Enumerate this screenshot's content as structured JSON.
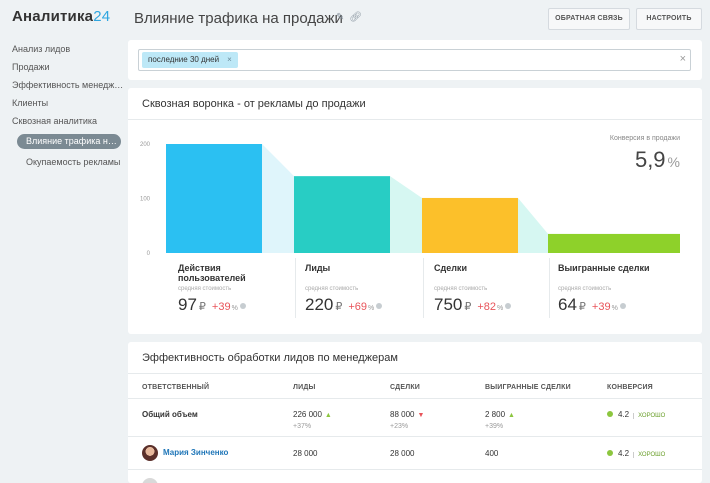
{
  "app": {
    "logo_text": "Аналитика",
    "logo_num": "24"
  },
  "sidebar": {
    "items": [
      {
        "label": "Анализ лидов"
      },
      {
        "label": "Продажи"
      },
      {
        "label": "Эффективность менеджеров"
      },
      {
        "label": "Клиенты"
      },
      {
        "label": "Сквозная аналитика"
      }
    ],
    "sub_items": [
      {
        "label": "Влияние трафика на продажи",
        "active": true
      },
      {
        "label": "Окупаемость рекламы"
      }
    ]
  },
  "header": {
    "title": "Влияние трафика на продажи",
    "edit_icon": "pencil-icon",
    "link_icon": "link-icon",
    "feedback_label": "ОБРАТНАЯ СВЯЗЬ",
    "settings_label": "НАСТРОИТЬ"
  },
  "filter": {
    "chip_label": "последние 30 дней",
    "chip_close": "×",
    "clear": "×"
  },
  "funnel": {
    "title": "Сквозная воронка - от рекламы до продажи",
    "conversion_label": "Конверсия в продажи",
    "conversion_value": "5,9",
    "conversion_unit": "%",
    "stages": [
      {
        "label": "Действия пользователей",
        "sub": "средняя стоимость",
        "value": "97",
        "currency": "₽",
        "delta": "+39",
        "delta_unit": "%",
        "color": "#2bc0f2",
        "band": "#dff5fb"
      },
      {
        "label": "Лиды",
        "sub": "средняя стоимость",
        "value": "220",
        "currency": "₽",
        "delta": "+69",
        "delta_unit": "%",
        "color": "#28cdc4",
        "band": "#d6f7f2"
      },
      {
        "label": "Сделки",
        "sub": "средняя стоимость",
        "value": "750",
        "currency": "₽",
        "delta": "+82",
        "delta_unit": "%",
        "color": "#fcc02a",
        "band": "#d6f7f2"
      },
      {
        "label": "Выигранные сделки",
        "sub": "средняя стоимость",
        "value": "64",
        "currency": "₽",
        "delta": "+39",
        "delta_unit": "%",
        "color": "#8ed12a",
        "band": "#e4f6cf"
      }
    ]
  },
  "chart_data": {
    "type": "bar",
    "categories": [
      "Действия пользователей",
      "Лиды",
      "Сделки",
      "Выигранные сделки"
    ],
    "values": [
      200,
      141,
      101,
      35
    ],
    "ylim": [
      0,
      200
    ],
    "yticks": [
      "200",
      "100",
      "0"
    ]
  },
  "table": {
    "title": "Эффективность обработки лидов по менеджерам",
    "headers": [
      "ОТВЕТСТВЕННЫЙ",
      "ЛИДЫ",
      "СДЕЛКИ",
      "ВЫИГРАННЫЕ СДЕЛКИ",
      "КОНВЕРСИЯ"
    ],
    "total": {
      "name": "Общий объем",
      "leads": "226 000",
      "leads_trend": "▲",
      "leads_delta": "+37%",
      "deals": "88 000",
      "deals_trend": "▼",
      "deals_delta": "+23%",
      "won": "2 800",
      "won_trend": "▲",
      "won_delta": "+39%",
      "conversion": "4.2",
      "badge": "ХОРОШО"
    },
    "rows": [
      {
        "name": "Мария Зинченко",
        "leads": "28 000",
        "deals": "28 000",
        "won": "400",
        "conversion": "4.2",
        "badge": "ХОРОШО"
      }
    ]
  }
}
